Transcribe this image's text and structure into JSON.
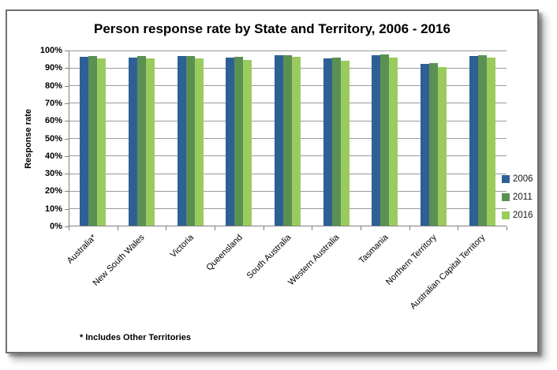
{
  "chart_data": {
    "type": "bar",
    "title": "Person response rate by State and Territory, 2006 - 2016",
    "ylabel": "Response rate",
    "xlabel": "",
    "footnote": "* Includes Other Territories",
    "categories": [
      "Australia*",
      "New South Wales",
      "Victoria",
      "Queensland",
      "South Australia",
      "Western Australia",
      "Tasmania",
      "Northern Territory",
      "Australian Capital Territory"
    ],
    "series": [
      {
        "name": "2006",
        "color": "#2E6095",
        "values": [
          95.8,
          95.4,
          96.2,
          95.4,
          96.8,
          95.0,
          96.9,
          92.0,
          96.4
        ]
      },
      {
        "name": "2011",
        "color": "#5A9153",
        "values": [
          96.3,
          96.2,
          96.6,
          95.9,
          97.0,
          95.6,
          97.2,
          92.3,
          96.7
        ]
      },
      {
        "name": "2016",
        "color": "#9BCB5E",
        "values": [
          94.9,
          94.9,
          95.0,
          94.0,
          96.0,
          93.9,
          95.6,
          90.3,
          95.4
        ]
      }
    ],
    "ylim": [
      0,
      100
    ],
    "ytick_step": 10,
    "ytick_labels": [
      "0%",
      "10%",
      "20%",
      "30%",
      "40%",
      "50%",
      "60%",
      "70%",
      "80%",
      "90%",
      "100%"
    ],
    "grid": "horizontal",
    "gridline_color": "#9a9a9a",
    "legend_position": "right",
    "category_label_rotation_deg": 45
  }
}
